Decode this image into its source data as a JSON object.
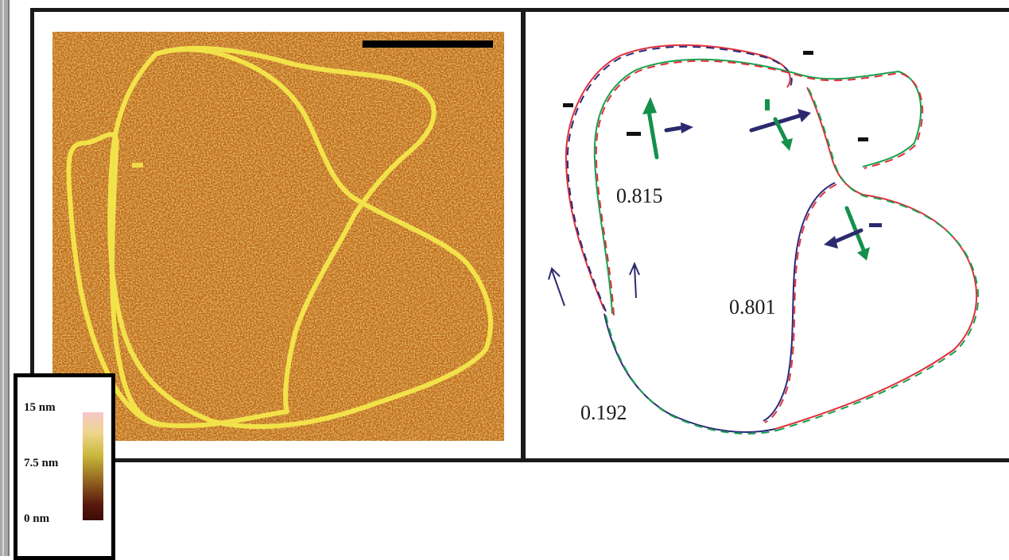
{
  "afm_image": {
    "colorbar": {
      "top_label": "15 nm",
      "mid_label": "7.5 nm",
      "bottom_label": "0 nm"
    },
    "colors": {
      "background": "#c06a12",
      "strand": "#f2e24a"
    }
  },
  "schematic": {
    "values": [
      "0.815",
      "0.801",
      "0.192"
    ],
    "colors": {
      "red_strand": "#e0303a",
      "blue_strand": "#2c2a7a",
      "green_strand": "#1aa050",
      "arrow_navy": "#2c2a6e",
      "arrow_green": "#14904a"
    }
  }
}
